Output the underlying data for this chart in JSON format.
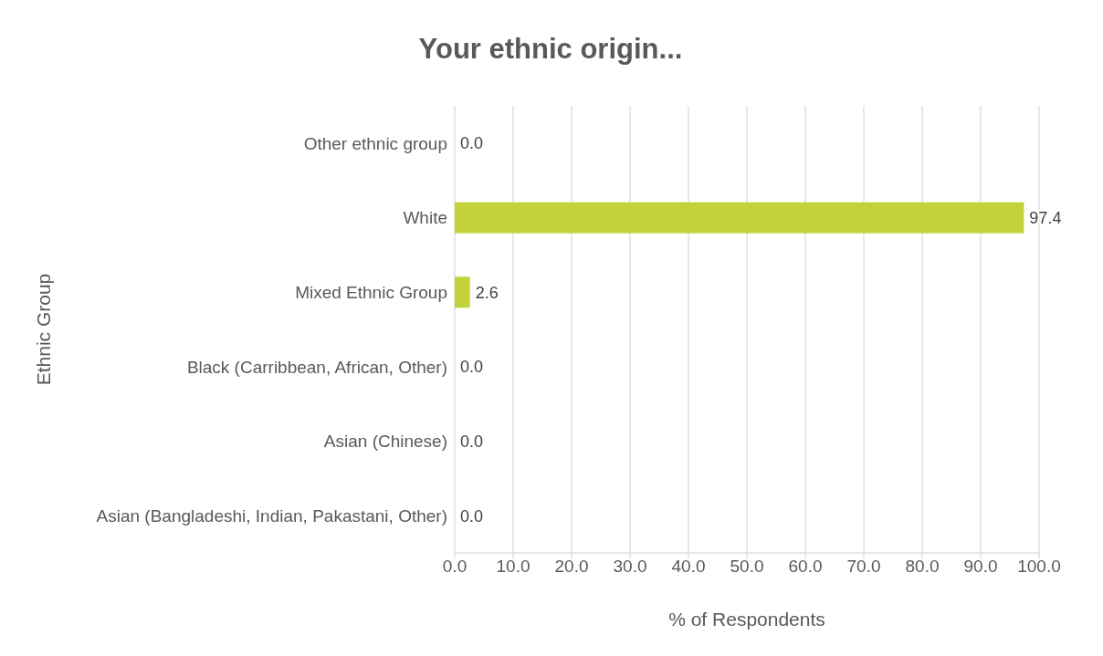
{
  "chart_data": {
    "type": "bar",
    "orientation": "horizontal",
    "title": "Your ethnic origin...",
    "xlabel": "% of Respondents",
    "ylabel": "Ethnic Group",
    "categories": [
      "Other ethnic group",
      "White",
      "Mixed Ethnic Group",
      "Black (Carribbean, African, Other)",
      "Asian (Chinese)",
      "Asian (Bangladeshi, Indian, Pakastani, Other)"
    ],
    "values": [
      0,
      97.4,
      2.6,
      0,
      0,
      0
    ],
    "value_labels": [
      "0.0",
      "97.4",
      "2.6",
      "0.0",
      "0.0",
      "0.0"
    ],
    "color": "#c4d23a",
    "xlim": [
      0,
      100
    ],
    "xticks": [
      {
        "value": 0,
        "label": "0.0"
      },
      {
        "value": 10,
        "label": "10.0"
      },
      {
        "value": 20,
        "label": "20.0"
      },
      {
        "value": 30,
        "label": "30.0"
      },
      {
        "value": 40,
        "label": "40.0"
      },
      {
        "value": 50,
        "label": "50.0"
      },
      {
        "value": 60,
        "label": "60.0"
      },
      {
        "value": 70,
        "label": "70.0"
      },
      {
        "value": 80,
        "label": "80.0"
      },
      {
        "value": 90,
        "label": "90.0"
      },
      {
        "value": 100,
        "label": "100.0"
      }
    ],
    "grid": "x",
    "legend": false
  }
}
